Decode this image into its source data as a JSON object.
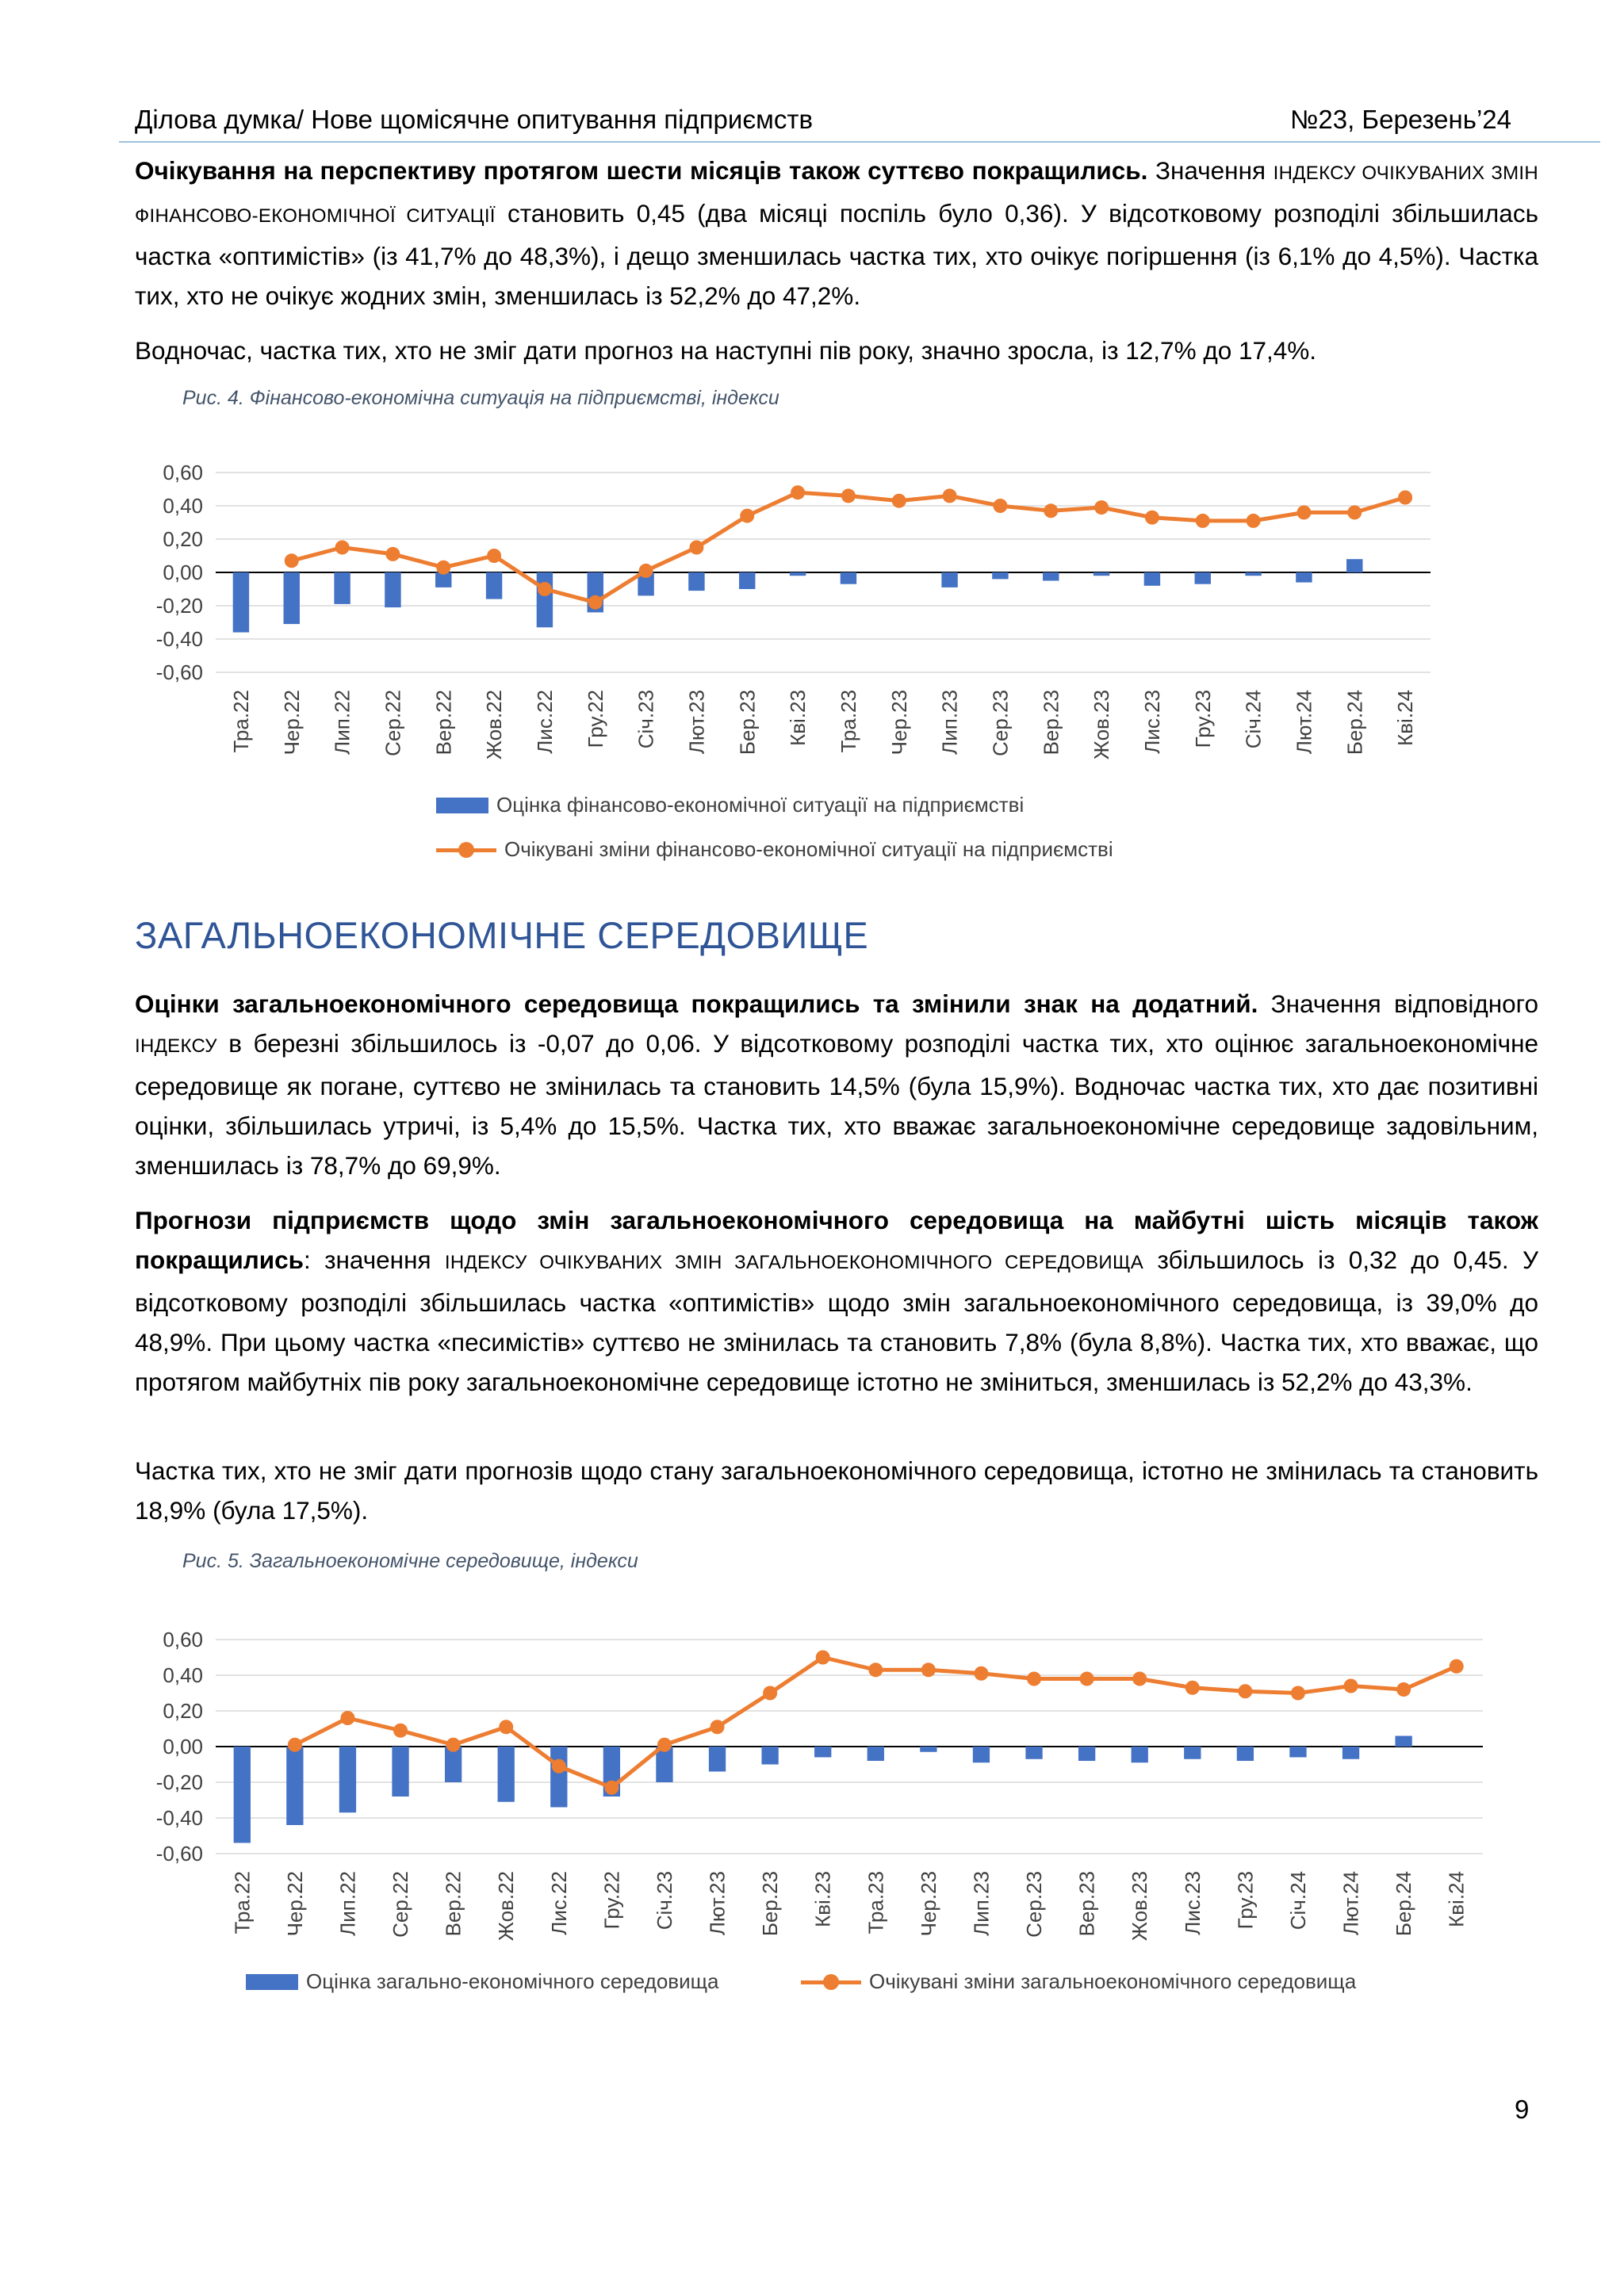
{
  "header": {
    "left": "Ділова думка/ Нове щомісячне опитування підприємств",
    "right": "№23, Березень’24"
  },
  "p1": {
    "bold": "Очікування на перспективу протягом шести місяців також суттєво покращились.",
    "t1": " Значення ",
    "sc": "індексу очікуваних змін фінансово-економічної ситуації",
    "t2": " становить 0,45 (два місяці поспіль було 0,36). У відсотковому розподілі  збільшилась частка «оптимістів» (із 41,7% до 48,3%), і дещо зменшилась частка тих, хто очікує погіршення (із 6,1% до 4,5%). Частка тих, хто не очікує жодних змін, зменшилась із 52,2% до 47,2%."
  },
  "p2": "Водночас, частка тих, хто не зміг дати прогноз на наступні пів року, значно зросла, із 12,7% до 17,4%.",
  "caption1": "Рис.  4. Фінансово-економічна ситуація на підприємстві, індекси",
  "section_title": "ЗАГАЛЬНОЕКОНОМІЧНЕ СЕРЕДОВИЩЕ",
  "p3": {
    "bold": "Оцінки загальноекономічного середовища покращились та змінили знак на додатний.",
    "t1": "  Значення відповідного ",
    "sc": "індексу",
    "t2": " в березні збільшилось із -0,07 до 0,06. У відсотковому розподілі частка тих, хто оцінює загальноекономічне середовище як погане, суттєво не змінилась та становить 14,5% (була 15,9%). Водночас частка тих, хто дає позитивні оцінки, збільшилась утричі, із 5,4% до 15,5%. Частка тих, хто вважає загальноекономічне середовище задовільним, зменшилась із 78,7% до 69,9%."
  },
  "p4": {
    "bold": "Прогнози підприємств щодо змін загальноекономічного середовища на майбутні шість місяців також покращились",
    "t1": ": значення ",
    "sc": "індексу очікуваних змін загальноекономічного середовища",
    "t2": " збільшилось із 0,32 до 0,45. У відсотковому розподілі збільшилась частка «оптимістів» щодо змін загальноекономічного середовища, із 39,0% до 48,9%. При цьому частка «песимістів» суттєво не змінилась та становить 7,8% (була 8,8%). Частка тих, хто вважає, що протягом майбутніх пів року загальноекономічне середовище істотно не зміниться, зменшилась із 52,2% до 43,3%."
  },
  "p5": "Частка тих,  хто не зміг дати прогнозів щодо стану загальноекономічного середовища, істотно не змінилась та становить 18,9% (була 17,5%).",
  "caption2": "Рис.  5. Загальноекономічне середовище, індекси",
  "page_number": "9",
  "colors": {
    "bar": "#4472c4",
    "line": "#ed7d31",
    "section_title": "#2f5597",
    "caption": "#44546a"
  },
  "chart_data": [
    {
      "type": "bar+line",
      "ylim": [
        -0.6,
        0.6
      ],
      "yticks": [
        "0,60",
        "0,40",
        "0,20",
        "0,00",
        "-0,20",
        "-0,40",
        "-0,60"
      ],
      "grid": true,
      "legend_position": "bottom, stacked",
      "categories": [
        "Тра.22",
        "Чер.22",
        "Лип.22",
        "Сер.22",
        "Вер.22",
        "Жов.22",
        "Лис.22",
        "Гру.22",
        "Січ.23",
        "Лют.23",
        "Бер.23",
        "Кві.23",
        "Тра.23",
        "Чер.23",
        "Лип.23",
        "Сер.23",
        "Вер.23",
        "Жов.23",
        "Лис.23",
        "Гру.23",
        "Січ.24",
        "Лют.24",
        "Бер.24",
        "Кві.24"
      ],
      "series": [
        {
          "name": "Оцінка фінансово-економічної ситуації на підприємстві",
          "type": "bar",
          "values": [
            -0.36,
            -0.31,
            -0.19,
            -0.21,
            -0.09,
            -0.16,
            -0.33,
            -0.24,
            -0.14,
            -0.11,
            -0.1,
            -0.02,
            -0.07,
            0.0,
            -0.09,
            -0.04,
            -0.05,
            -0.02,
            -0.08,
            -0.07,
            -0.02,
            -0.06,
            0.08,
            null
          ]
        },
        {
          "name": "Очікувані зміни фінансово-економічної ситуації на підприємстві",
          "type": "line",
          "values": [
            null,
            0.07,
            0.15,
            0.11,
            0.03,
            0.1,
            -0.1,
            -0.18,
            0.01,
            0.15,
            0.34,
            0.48,
            0.46,
            0.43,
            0.46,
            0.4,
            0.37,
            0.39,
            0.33,
            0.31,
            0.31,
            0.36,
            0.36,
            0.45
          ]
        }
      ]
    },
    {
      "type": "bar+line",
      "ylim": [
        -0.6,
        0.6
      ],
      "yticks": [
        "0,60",
        "0,40",
        "0,20",
        "0,00",
        "-0,20",
        "-0,40",
        "-0,60"
      ],
      "grid": true,
      "legend_position": "bottom, one row",
      "categories": [
        "Тра.22",
        "Чер.22",
        "Лип.22",
        "Сер.22",
        "Вер.22",
        "Жов.22",
        "Лис.22",
        "Гру.22",
        "Січ.23",
        "Лют.23",
        "Бер.23",
        "Кві.23",
        "Тра.23",
        "Чер.23",
        "Лип.23",
        "Сер.23",
        "Вер.23",
        "Жов.23",
        "Лис.23",
        "Гру.23",
        "Січ.24",
        "Лют.24",
        "Бер.24",
        "Кві.24"
      ],
      "series": [
        {
          "name": "Оцінка загально-економічного середовища",
          "type": "bar",
          "values": [
            -0.54,
            -0.44,
            -0.37,
            -0.28,
            -0.2,
            -0.31,
            -0.34,
            -0.28,
            -0.2,
            -0.14,
            -0.1,
            -0.06,
            -0.08,
            -0.03,
            -0.09,
            -0.07,
            -0.08,
            -0.09,
            -0.07,
            -0.08,
            -0.06,
            -0.07,
            0.06,
            null
          ]
        },
        {
          "name": "Очікувані зміни загальноекономічного середовища",
          "type": "line",
          "values": [
            null,
            0.01,
            0.16,
            0.09,
            0.01,
            0.11,
            -0.11,
            -0.23,
            0.01,
            0.11,
            0.3,
            0.5,
            0.43,
            0.43,
            0.41,
            0.38,
            0.38,
            0.38,
            0.33,
            0.31,
            0.3,
            0.34,
            0.32,
            0.45
          ]
        }
      ]
    }
  ]
}
